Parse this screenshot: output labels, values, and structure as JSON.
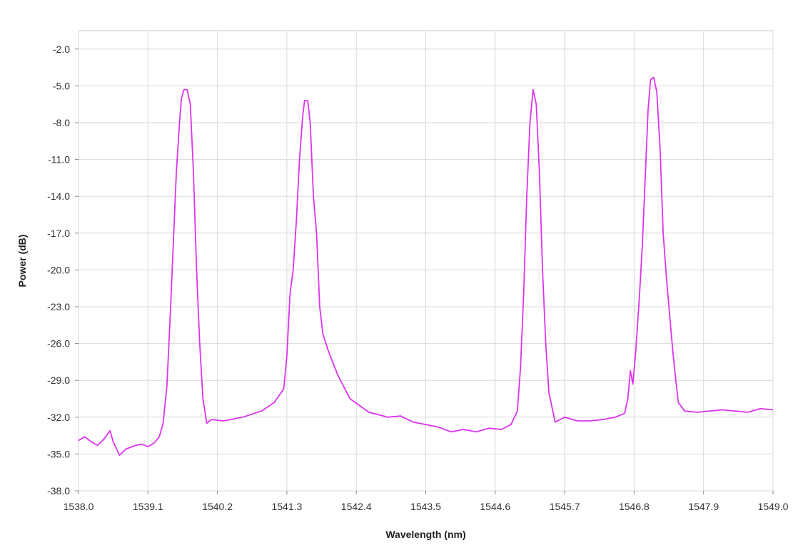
{
  "chart_data": {
    "type": "line",
    "title": "",
    "xlabel": "Wavelength (nm)",
    "ylabel": "Power (dB)",
    "xlim": [
      1538.0,
      1549.0
    ],
    "ylim": [
      -38.0,
      -0.5
    ],
    "x_ticks": [
      "1538.0",
      "1539.1",
      "1540.2",
      "1541.3",
      "1542.4",
      "1543.5",
      "1544.6",
      "1545.7",
      "1546.8",
      "1547.9",
      "1549.0"
    ],
    "y_ticks": [
      "-2.0",
      "-5.0",
      "-8.0",
      "-11.0",
      "-14.0",
      "-17.0",
      "-20.0",
      "-23.0",
      "-26.0",
      "-29.0",
      "-32.0",
      "-35.0",
      "-38.0"
    ],
    "grid": true,
    "legend": "none",
    "colors": {
      "line": "#dd33ee",
      "grid": "#d9d9d9",
      "frame": "#c8c8c8"
    },
    "series": [
      {
        "values": [
          [
            1538.0,
            -33.9
          ],
          [
            1538.1,
            -33.6
          ],
          [
            1538.2,
            -34.0
          ],
          [
            1538.3,
            -34.3
          ],
          [
            1538.4,
            -33.8
          ],
          [
            1538.5,
            -33.1
          ],
          [
            1538.55,
            -34.0
          ],
          [
            1538.65,
            -35.1
          ],
          [
            1538.75,
            -34.6
          ],
          [
            1538.9,
            -34.3
          ],
          [
            1539.0,
            -34.2
          ],
          [
            1539.1,
            -34.4
          ],
          [
            1539.2,
            -34.1
          ],
          [
            1539.28,
            -33.6
          ],
          [
            1539.34,
            -32.5
          ],
          [
            1539.4,
            -29.5
          ],
          [
            1539.45,
            -24.0
          ],
          [
            1539.5,
            -18.0
          ],
          [
            1539.55,
            -12.0
          ],
          [
            1539.6,
            -8.0
          ],
          [
            1539.63,
            -6.0
          ],
          [
            1539.67,
            -5.3
          ],
          [
            1539.72,
            -5.3
          ],
          [
            1539.77,
            -6.5
          ],
          [
            1539.82,
            -12.0
          ],
          [
            1539.87,
            -20.0
          ],
          [
            1539.92,
            -26.0
          ],
          [
            1539.97,
            -30.5
          ],
          [
            1540.03,
            -32.5
          ],
          [
            1540.1,
            -32.2
          ],
          [
            1540.3,
            -32.3
          ],
          [
            1540.6,
            -32.0
          ],
          [
            1540.9,
            -31.5
          ],
          [
            1541.1,
            -30.8
          ],
          [
            1541.25,
            -29.7
          ],
          [
            1541.3,
            -27.0
          ],
          [
            1541.35,
            -22.0
          ],
          [
            1541.4,
            -20.0
          ],
          [
            1541.45,
            -16.0
          ],
          [
            1541.5,
            -11.0
          ],
          [
            1541.55,
            -7.5
          ],
          [
            1541.58,
            -6.2
          ],
          [
            1541.63,
            -6.2
          ],
          [
            1541.67,
            -8.0
          ],
          [
            1541.72,
            -14.0
          ],
          [
            1541.77,
            -17.0
          ],
          [
            1541.82,
            -23.0
          ],
          [
            1541.87,
            -25.2
          ],
          [
            1541.95,
            -26.5
          ],
          [
            1542.1,
            -28.5
          ],
          [
            1542.3,
            -30.5
          ],
          [
            1542.6,
            -31.6
          ],
          [
            1542.9,
            -32.0
          ],
          [
            1543.1,
            -31.9
          ],
          [
            1543.3,
            -32.4
          ],
          [
            1543.5,
            -32.6
          ],
          [
            1543.7,
            -32.8
          ],
          [
            1543.9,
            -33.2
          ],
          [
            1544.1,
            -33.0
          ],
          [
            1544.3,
            -33.2
          ],
          [
            1544.5,
            -32.9
          ],
          [
            1544.7,
            -33.0
          ],
          [
            1544.85,
            -32.6
          ],
          [
            1544.95,
            -31.5
          ],
          [
            1545.0,
            -28.0
          ],
          [
            1545.05,
            -22.0
          ],
          [
            1545.1,
            -14.0
          ],
          [
            1545.15,
            -8.0
          ],
          [
            1545.2,
            -5.3
          ],
          [
            1545.25,
            -6.5
          ],
          [
            1545.3,
            -12.0
          ],
          [
            1545.35,
            -20.0
          ],
          [
            1545.4,
            -26.0
          ],
          [
            1545.45,
            -30.0
          ],
          [
            1545.55,
            -32.4
          ],
          [
            1545.7,
            -32.0
          ],
          [
            1545.9,
            -32.3
          ],
          [
            1546.1,
            -32.3
          ],
          [
            1546.3,
            -32.2
          ],
          [
            1546.5,
            -32.0
          ],
          [
            1546.65,
            -31.7
          ],
          [
            1546.7,
            -30.5
          ],
          [
            1546.74,
            -28.2
          ],
          [
            1546.78,
            -29.3
          ],
          [
            1546.82,
            -27.0
          ],
          [
            1546.88,
            -22.5
          ],
          [
            1546.93,
            -18.0
          ],
          [
            1546.98,
            -12.0
          ],
          [
            1547.02,
            -7.0
          ],
          [
            1547.06,
            -4.5
          ],
          [
            1547.11,
            -4.3
          ],
          [
            1547.16,
            -5.5
          ],
          [
            1547.21,
            -10.0
          ],
          [
            1547.26,
            -17.0
          ],
          [
            1547.31,
            -20.5
          ],
          [
            1547.36,
            -23.5
          ],
          [
            1547.41,
            -26.5
          ],
          [
            1547.46,
            -29.0
          ],
          [
            1547.5,
            -30.8
          ],
          [
            1547.6,
            -31.5
          ],
          [
            1547.8,
            -31.6
          ],
          [
            1548.0,
            -31.5
          ],
          [
            1548.2,
            -31.4
          ],
          [
            1548.4,
            -31.5
          ],
          [
            1548.6,
            -31.6
          ],
          [
            1548.8,
            -31.3
          ],
          [
            1549.0,
            -31.4
          ]
        ]
      }
    ]
  }
}
